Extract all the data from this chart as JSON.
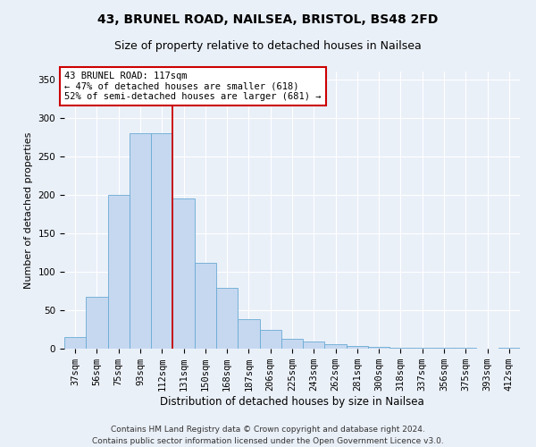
{
  "title1": "43, BRUNEL ROAD, NAILSEA, BRISTOL, BS48 2FD",
  "title2": "Size of property relative to detached houses in Nailsea",
  "xlabel": "Distribution of detached houses by size in Nailsea",
  "ylabel": "Number of detached properties",
  "categories": [
    "37sqm",
    "56sqm",
    "75sqm",
    "93sqm",
    "112sqm",
    "131sqm",
    "150sqm",
    "168sqm",
    "187sqm",
    "206sqm",
    "225sqm",
    "243sqm",
    "262sqm",
    "281sqm",
    "300sqm",
    "318sqm",
    "337sqm",
    "356sqm",
    "375sqm",
    "393sqm",
    "412sqm"
  ],
  "values": [
    15,
    67,
    200,
    280,
    280,
    195,
    112,
    79,
    38,
    24,
    13,
    9,
    6,
    4,
    2,
    1,
    1,
    1,
    1,
    0,
    1
  ],
  "bar_color": "#c5d8f0",
  "bar_edge_color": "#6aaad4",
  "bar_width": 1.0,
  "vline_x": 4.5,
  "vline_color": "#cc0000",
  "annotation_line1": "43 BRUNEL ROAD: 117sqm",
  "annotation_line2": "← 47% of detached houses are smaller (618)",
  "annotation_line3": "52% of semi-detached houses are larger (681) →",
  "annotation_box_color": "#ffffff",
  "annotation_box_edge_color": "#cc0000",
  "ylim": [
    0,
    360
  ],
  "yticks": [
    0,
    50,
    100,
    150,
    200,
    250,
    300,
    350
  ],
  "footer_text": "Contains HM Land Registry data © Crown copyright and database right 2024.\nContains public sector information licensed under the Open Government Licence v3.0.",
  "bg_color": "#eaf0f8",
  "plot_bg_color": "#eaf0f8",
  "grid_color": "#ffffff",
  "title1_fontsize": 10,
  "title2_fontsize": 9,
  "xlabel_fontsize": 8.5,
  "ylabel_fontsize": 8,
  "tick_fontsize": 7.5,
  "annotation_fontsize": 7.5,
  "footer_fontsize": 6.5
}
